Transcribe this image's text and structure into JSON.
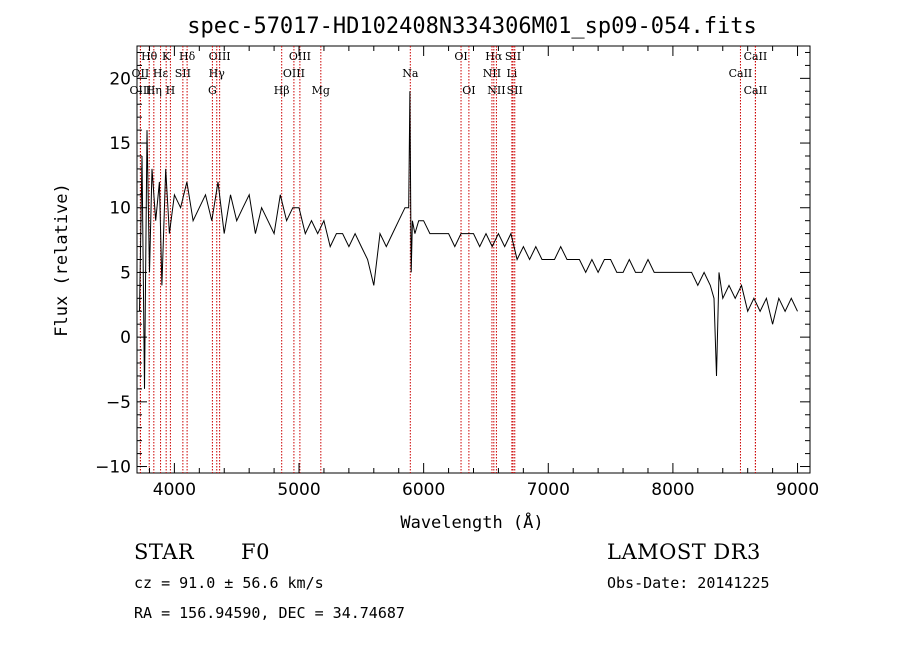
{
  "chart_data": {
    "type": "line",
    "title": "spec-57017-HD102408N334306M01_sp09-054.fits",
    "xlabel": "Wavelength (Å)",
    "ylabel": "Flux (relative)",
    "xlim": [
      3700,
      9100
    ],
    "ylim": [
      -10.5,
      22.5
    ],
    "xticks": [
      4000,
      5000,
      6000,
      7000,
      8000,
      9000
    ],
    "yticks": [
      -10,
      -5,
      0,
      5,
      10,
      15,
      20
    ],
    "grid": false,
    "series": [
      {
        "x": [
          3720,
          3740,
          3760,
          3780,
          3800,
          3820,
          3850,
          3880,
          3900,
          3930,
          3960,
          4000,
          4050,
          4100,
          4150,
          4200,
          4250,
          4300,
          4350,
          4400,
          4450,
          4500,
          4550,
          4600,
          4650,
          4700,
          4750,
          4800,
          4850,
          4900,
          4950,
          5000,
          5050,
          5100,
          5150,
          5200,
          5250,
          5300,
          5350,
          5400,
          5450,
          5500,
          5550,
          5600,
          5650,
          5700,
          5750,
          5800,
          5850,
          5880,
          5890,
          5900,
          5910,
          5930,
          5960,
          6000,
          6050,
          6100,
          6150,
          6200,
          6250,
          6300,
          6350,
          6400,
          6450,
          6500,
          6550,
          6600,
          6650,
          6700,
          6750,
          6800,
          6850,
          6900,
          6950,
          7000,
          7050,
          7100,
          7150,
          7200,
          7250,
          7300,
          7350,
          7400,
          7450,
          7500,
          7550,
          7600,
          7650,
          7700,
          7750,
          7800,
          7850,
          7900,
          7950,
          8000,
          8050,
          8100,
          8150,
          8200,
          8250,
          8300,
          8330,
          8350,
          8370,
          8400,
          8450,
          8500,
          8550,
          8600,
          8650,
          8700,
          8750,
          8800,
          8850,
          8900,
          8950,
          9000
        ],
        "values": [
          2,
          14,
          -4,
          16,
          5,
          13,
          9,
          12,
          4,
          13,
          8,
          11,
          10,
          12,
          9,
          10,
          11,
          9,
          12,
          8,
          11,
          9,
          10,
          11,
          8,
          10,
          9,
          8,
          11,
          9,
          10,
          10,
          8,
          9,
          8,
          9,
          7,
          8,
          8,
          7,
          8,
          7,
          6,
          4,
          8,
          7,
          8,
          9,
          10,
          10,
          19,
          5,
          9,
          8,
          9,
          9,
          8,
          8,
          8,
          8,
          7,
          8,
          8,
          8,
          7,
          8,
          7,
          8,
          7,
          8,
          6,
          7,
          6,
          7,
          6,
          6,
          6,
          7,
          6,
          6,
          6,
          5,
          6,
          5,
          6,
          6,
          5,
          5,
          6,
          5,
          5,
          6,
          5,
          5,
          5,
          5,
          5,
          5,
          5,
          4,
          5,
          4,
          3,
          -3,
          5,
          3,
          4,
          3,
          4,
          2,
          3,
          2,
          3,
          1,
          3,
          2,
          3,
          2
        ]
      }
    ]
  },
  "line_markers": [
    {
      "label": "Hθ",
      "wave": 3798,
      "row": 0
    },
    {
      "label": "OII",
      "wave": 3727,
      "row": 1
    },
    {
      "label": "OIII",
      "wave": 3728,
      "row": 2
    },
    {
      "label": "K",
      "wave": 3934,
      "row": 0
    },
    {
      "label": "Hε",
      "wave": 3889,
      "row": 1
    },
    {
      "label": "Hη",
      "wave": 3835,
      "row": 2
    },
    {
      "label": "SII",
      "wave": 4068,
      "row": 1
    },
    {
      "label": "H",
      "wave": 3968,
      "row": 2
    },
    {
      "label": "Hδ",
      "wave": 4102,
      "row": 0
    },
    {
      "label": "OIII",
      "wave": 4363,
      "row": 0
    },
    {
      "label": "Hγ",
      "wave": 4340,
      "row": 1
    },
    {
      "label": "G",
      "wave": 4305,
      "row": 2
    },
    {
      "label": "OIII",
      "wave": 5007,
      "row": 0
    },
    {
      "label": "OIII",
      "wave": 4959,
      "row": 1
    },
    {
      "label": "Hβ",
      "wave": 4861,
      "row": 2
    },
    {
      "label": "Mg",
      "wave": 5175,
      "row": 2
    },
    {
      "label": "Na",
      "wave": 5893,
      "row": 1
    },
    {
      "label": "OI",
      "wave": 6300,
      "row": 0
    },
    {
      "label": "OI",
      "wave": 6363,
      "row": 2
    },
    {
      "label": "Hα",
      "wave": 6563,
      "row": 0
    },
    {
      "label": "SII",
      "wave": 6717,
      "row": 0
    },
    {
      "label": "NII",
      "wave": 6548,
      "row": 1
    },
    {
      "label": "Li",
      "wave": 6708,
      "row": 1
    },
    {
      "label": "NII",
      "wave": 6584,
      "row": 2
    },
    {
      "label": "SII",
      "wave": 6731,
      "row": 2
    },
    {
      "label": "CaII",
      "wave": 8662,
      "row": 0
    },
    {
      "label": "CaII",
      "wave": 8542,
      "row": 1
    },
    {
      "label": "CaII",
      "wave": 8662,
      "row": 2
    }
  ],
  "info": {
    "object_type": "STAR",
    "subclass": "F0",
    "survey": "LAMOST DR3",
    "redshift": "cz = 91.0 ± 56.6 km/s",
    "obs_date": "Obs-Date: 20141225",
    "coords": "RA = 156.94590, DEC =  34.74687"
  },
  "colors": {
    "spectrum": "#000000",
    "marker_lines": "#cc0000",
    "axes": "#000000"
  }
}
